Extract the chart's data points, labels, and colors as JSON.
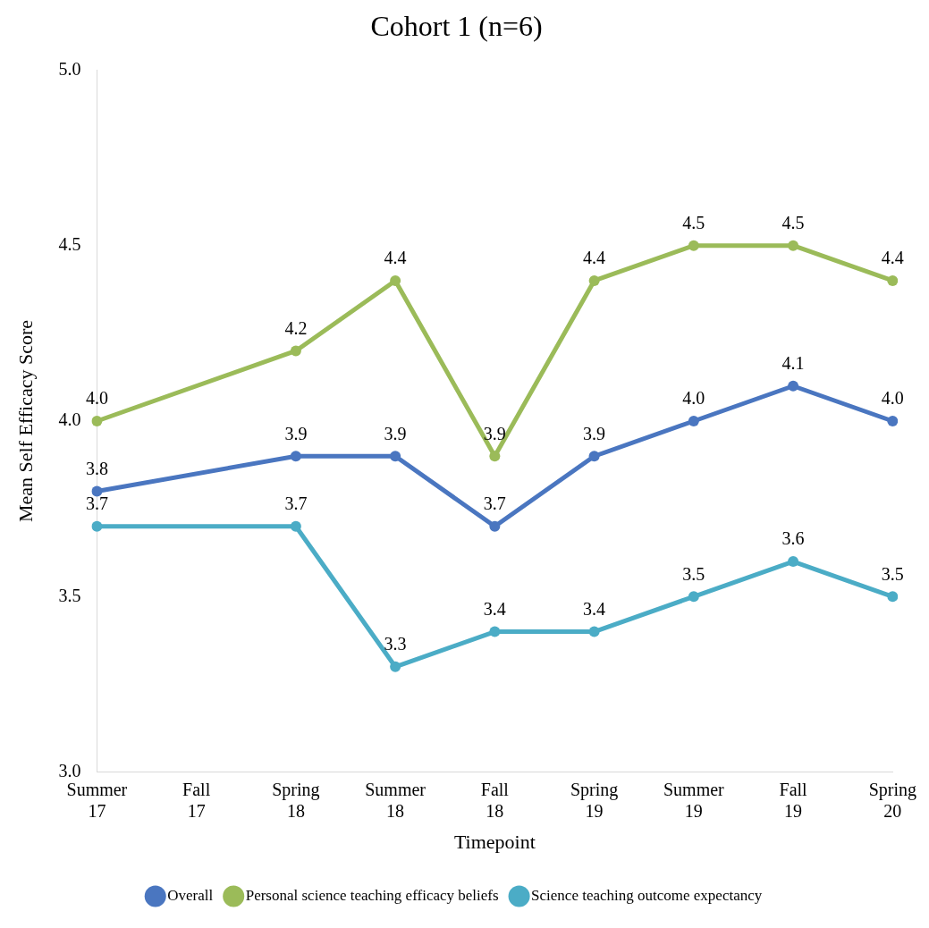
{
  "chart_data": {
    "type": "line",
    "title": "Cohort 1 (n=6)",
    "xlabel": "Timepoint",
    "ylabel": "Mean Self Efficacy Score",
    "categories": [
      "Summer 17",
      "Fall 17",
      "Spring 18",
      "Summer 18",
      "Fall 18",
      "Spring 19",
      "Summer 19",
      "Fall 19",
      "Spring 20"
    ],
    "series": [
      {
        "name": "Overall",
        "color": "#4a76c0",
        "values": [
          3.8,
          null,
          3.9,
          3.9,
          3.7,
          3.9,
          4.0,
          4.1,
          4.0
        ],
        "value_labels": [
          "3.8",
          null,
          "3.9",
          "3.9",
          "3.7",
          "3.9",
          "4.0",
          "4.1",
          "4.0"
        ]
      },
      {
        "name": "Personal science teaching efficacy beliefs",
        "color": "#9bbb59",
        "values": [
          4.0,
          null,
          4.2,
          4.4,
          3.9,
          4.4,
          4.5,
          4.5,
          4.4
        ],
        "value_labels": [
          "4.0",
          null,
          "4.2",
          "4.4",
          "3.9",
          "4.4",
          "4.5",
          "4.5",
          "4.4"
        ]
      },
      {
        "name": "Science teaching outcome expectancy",
        "color": "#4bacc6",
        "values": [
          3.7,
          null,
          3.7,
          3.3,
          3.4,
          3.4,
          3.5,
          3.6,
          3.5
        ],
        "value_labels": [
          "3.7",
          null,
          "3.7",
          "3.3",
          "3.4",
          "3.4",
          "3.5",
          "3.6",
          "3.5"
        ]
      }
    ],
    "ylim": [
      3.0,
      5.0
    ],
    "yticks": [
      {
        "value": 3.0,
        "label": "3.0"
      },
      {
        "value": 3.5,
        "label": "3.5"
      },
      {
        "value": 4.0,
        "label": "4.0"
      },
      {
        "value": 4.5,
        "label": "4.5"
      },
      {
        "value": 5.0,
        "label": "5.0"
      }
    ],
    "grid": false,
    "legend": "bottom",
    "marker": "circle",
    "line_style": "solid"
  }
}
